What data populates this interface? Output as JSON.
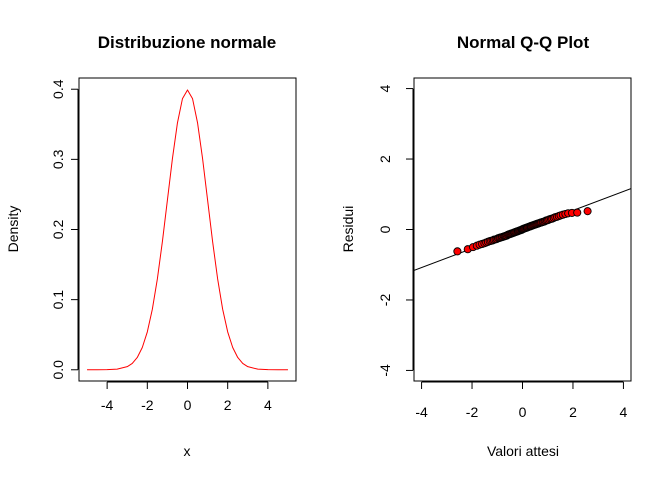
{
  "chart_data": [
    {
      "type": "line",
      "title": "Distribuzione normale",
      "xlabel": "x",
      "ylabel": "Density",
      "xlim": [
        -5,
        5
      ],
      "ylim": [
        0,
        0.4
      ],
      "x_ticks": [
        -4,
        -2,
        0,
        2,
        4
      ],
      "y_ticks": [
        0.0,
        0.1,
        0.2,
        0.3,
        0.4
      ],
      "y_tick_labels": [
        "0.0",
        "0.1",
        "0.2",
        "0.3",
        "0.4"
      ],
      "series": [
        {
          "color": "#ff0000",
          "x": [
            -5,
            -4.5,
            -4,
            -3.5,
            -3,
            -2.75,
            -2.5,
            -2.25,
            -2,
            -1.75,
            -1.5,
            -1.25,
            -1,
            -0.75,
            -0.5,
            -0.25,
            0,
            0.25,
            0.5,
            0.75,
            1,
            1.25,
            1.5,
            1.75,
            2,
            2.25,
            2.5,
            2.75,
            3,
            3.5,
            4,
            4.5,
            5
          ],
          "y": [
            1.5e-06,
            1.6e-05,
            0.000134,
            0.000873,
            0.004432,
            0.009094,
            0.017528,
            0.03174,
            0.053991,
            0.086277,
            0.129518,
            0.182649,
            0.241971,
            0.301137,
            0.352065,
            0.386668,
            0.398942,
            0.386668,
            0.352065,
            0.301137,
            0.241971,
            0.182649,
            0.129518,
            0.086277,
            0.053991,
            0.03174,
            0.017528,
            0.009094,
            0.004432,
            0.000873,
            0.000134,
            1.6e-05,
            1.5e-06
          ]
        }
      ]
    },
    {
      "type": "scatter",
      "title": "Normal Q-Q Plot",
      "xlabel": "Valori attesi",
      "ylabel": "Residui",
      "xlim": [
        -4.3,
        4.3
      ],
      "ylim": [
        -4.3,
        4.3
      ],
      "x_ticks": [
        -4,
        -2,
        0,
        2,
        4
      ],
      "y_ticks": [
        -4,
        -2,
        0,
        2,
        4
      ],
      "point_fill": "#ff0000",
      "point_stroke": "#000000",
      "reference_line": {
        "intercept": 0,
        "slope": 0.27
      },
      "points": {
        "x": [
          -2.58,
          -2.17,
          -1.96,
          -1.81,
          -1.7,
          -1.6,
          -1.51,
          -1.44,
          -1.37,
          -1.3,
          -1.24,
          -1.18,
          -1.13,
          -1.07,
          -1.02,
          -0.97,
          -0.92,
          -0.88,
          -0.83,
          -0.79,
          -0.74,
          -0.7,
          -0.66,
          -0.62,
          -0.58,
          -0.54,
          -0.5,
          -0.46,
          -0.42,
          -0.38,
          -0.34,
          -0.31,
          -0.27,
          -0.23,
          -0.19,
          -0.16,
          -0.12,
          -0.08,
          -0.04,
          -0.01,
          0.01,
          0.04,
          0.08,
          0.12,
          0.16,
          0.19,
          0.23,
          0.27,
          0.31,
          0.34,
          0.38,
          0.42,
          0.46,
          0.5,
          0.54,
          0.58,
          0.62,
          0.66,
          0.7,
          0.74,
          0.79,
          0.83,
          0.88,
          0.92,
          0.97,
          1.02,
          1.07,
          1.13,
          1.18,
          1.24,
          1.3,
          1.37,
          1.44,
          1.51,
          1.6,
          1.7,
          1.81,
          1.96,
          2.17,
          2.58
        ],
        "y": [
          -0.62,
          -0.56,
          -0.5,
          -0.46,
          -0.43,
          -0.41,
          -0.39,
          -0.37,
          -0.35,
          -0.33,
          -0.32,
          -0.31,
          -0.29,
          -0.28,
          -0.27,
          -0.25,
          -0.24,
          -0.23,
          -0.22,
          -0.21,
          -0.2,
          -0.19,
          -0.18,
          -0.17,
          -0.15,
          -0.14,
          -0.13,
          -0.12,
          -0.11,
          -0.1,
          -0.09,
          -0.08,
          -0.07,
          -0.06,
          -0.05,
          -0.04,
          -0.03,
          -0.02,
          -0.01,
          0.0,
          0.01,
          0.02,
          0.03,
          0.04,
          0.05,
          0.06,
          0.07,
          0.08,
          0.09,
          0.1,
          0.11,
          0.12,
          0.13,
          0.14,
          0.15,
          0.16,
          0.17,
          0.18,
          0.19,
          0.2,
          0.21,
          0.22,
          0.23,
          0.25,
          0.26,
          0.27,
          0.29,
          0.3,
          0.31,
          0.33,
          0.35,
          0.36,
          0.38,
          0.4,
          0.42,
          0.44,
          0.46,
          0.47,
          0.48,
          0.52
        ]
      }
    }
  ]
}
